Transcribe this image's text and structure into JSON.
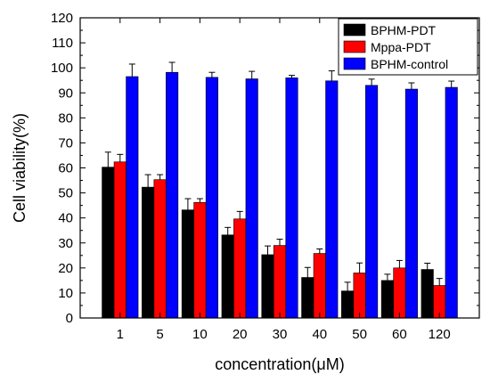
{
  "chart_data": {
    "type": "bar",
    "title": "",
    "xlabel": "concentration(μM)",
    "ylabel": "Cell viability(%)",
    "ylim": [
      0,
      120
    ],
    "yticks": [
      "0",
      "10",
      "20",
      "30",
      "40",
      "50",
      "60",
      "70",
      "80",
      "90",
      "100",
      "110",
      "120"
    ],
    "categories": [
      "1",
      "5",
      "10",
      "20",
      "30",
      "40",
      "50",
      "60",
      "120"
    ],
    "grid": false,
    "legend_position": "top-right",
    "error_bars": true,
    "series": [
      {
        "name": "BPHM-PDT",
        "color": "#000000",
        "values": [
          60.3,
          52.3,
          43.2,
          33.2,
          25.3,
          16.2,
          10.8,
          15.0,
          19.4
        ],
        "errors": [
          6.0,
          5.0,
          4.5,
          3.0,
          3.5,
          4.0,
          3.5,
          2.5,
          2.5
        ]
      },
      {
        "name": "Mppa-PDT",
        "color": "#ff0000",
        "values": [
          62.4,
          55.3,
          46.2,
          39.6,
          29.0,
          25.8,
          18.0,
          20.0,
          13.0
        ],
        "errors": [
          3.0,
          2.0,
          1.5,
          3.0,
          2.5,
          1.8,
          4.0,
          3.0,
          2.8
        ]
      },
      {
        "name": "BPHM-control",
        "color": "#0000ff",
        "values": [
          96.5,
          98.2,
          96.2,
          95.6,
          96.0,
          94.8,
          93.0,
          91.5,
          92.2
        ],
        "errors": [
          5.0,
          4.0,
          2.0,
          3.0,
          1.0,
          4.0,
          2.5,
          2.5,
          2.5
        ]
      }
    ]
  }
}
